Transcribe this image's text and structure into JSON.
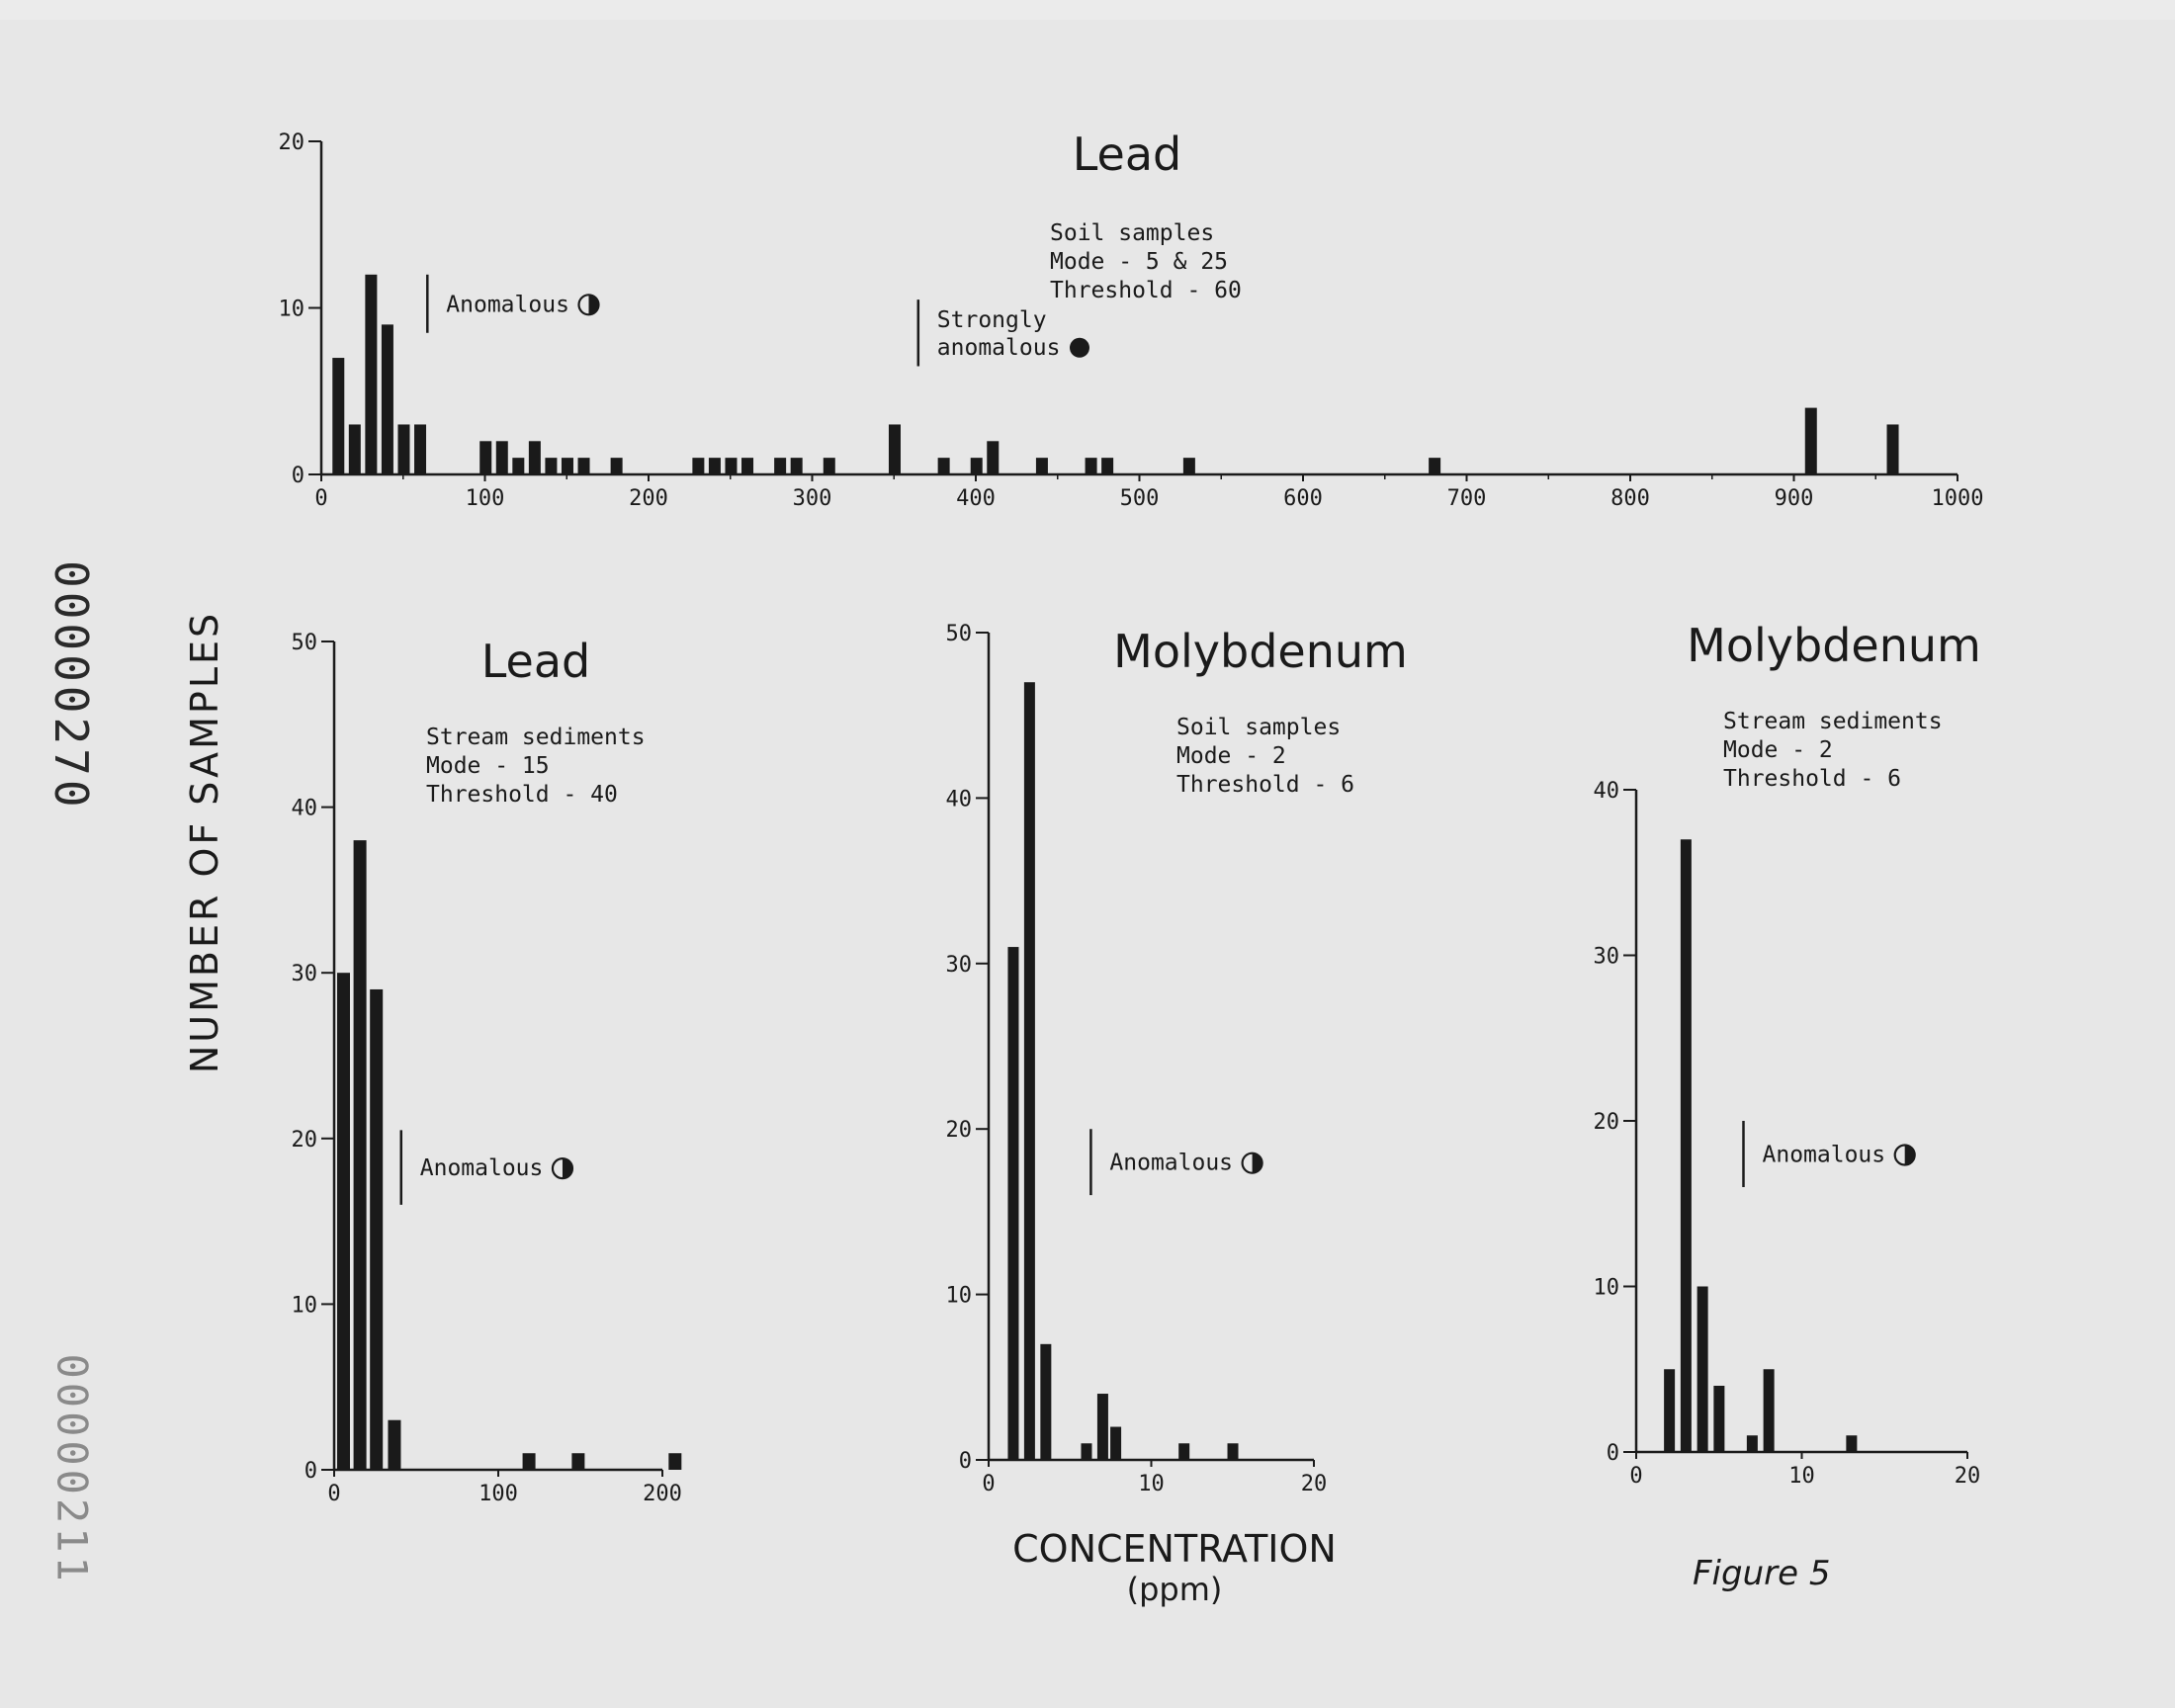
{
  "document": {
    "doc_number": "00000270",
    "doc_number_faded": "00000211",
    "figure_label": "Figure 5",
    "y_axis_label": "NUMBER   OF   SAMPLES",
    "x_axis_label": "CONCENTRATION",
    "x_axis_unit": "(ppm)"
  },
  "chart_data": [
    {
      "type": "bar",
      "title": "Lead",
      "info": [
        "Soil samples",
        "Mode - 5 & 25",
        "Threshold - 60"
      ],
      "xlim": [
        0,
        1000
      ],
      "ylim": [
        0,
        20
      ],
      "xticks": [
        0,
        100,
        200,
        300,
        400,
        500,
        600,
        700,
        800,
        900,
        1000
      ],
      "yticks": [
        0,
        10,
        20
      ],
      "bars": [
        {
          "x": 5,
          "y": 7
        },
        {
          "x": 15,
          "y": 3
        },
        {
          "x": 25,
          "y": 12
        },
        {
          "x": 35,
          "y": 9
        },
        {
          "x": 45,
          "y": 3
        },
        {
          "x": 55,
          "y": 3
        },
        {
          "x": 95,
          "y": 2
        },
        {
          "x": 105,
          "y": 2
        },
        {
          "x": 115,
          "y": 1
        },
        {
          "x": 125,
          "y": 2
        },
        {
          "x": 135,
          "y": 1
        },
        {
          "x": 145,
          "y": 1
        },
        {
          "x": 155,
          "y": 1
        },
        {
          "x": 175,
          "y": 1
        },
        {
          "x": 225,
          "y": 1
        },
        {
          "x": 235,
          "y": 1
        },
        {
          "x": 245,
          "y": 1
        },
        {
          "x": 255,
          "y": 1
        },
        {
          "x": 275,
          "y": 1
        },
        {
          "x": 285,
          "y": 1
        },
        {
          "x": 305,
          "y": 1
        },
        {
          "x": 345,
          "y": 3
        },
        {
          "x": 375,
          "y": 1
        },
        {
          "x": 395,
          "y": 1
        },
        {
          "x": 405,
          "y": 2
        },
        {
          "x": 435,
          "y": 1
        },
        {
          "x": 465,
          "y": 1
        },
        {
          "x": 475,
          "y": 1
        },
        {
          "x": 525,
          "y": 1
        },
        {
          "x": 675,
          "y": 1
        },
        {
          "x": 905,
          "y": 4
        },
        {
          "x": 955,
          "y": 3
        }
      ],
      "markers": [
        {
          "x": 60,
          "ymin": 8.5,
          "ymax": 12,
          "label": [
            "Anomalous"
          ],
          "symbol": "half"
        },
        {
          "x": 360,
          "ymin": 6.5,
          "ymax": 10.5,
          "label": [
            "Strongly",
            "anomalous"
          ],
          "symbol": "full"
        }
      ]
    },
    {
      "type": "bar",
      "title": "Lead",
      "info": [
        "Stream sediments",
        "Mode - 15",
        "Threshold - 40"
      ],
      "xlim": [
        0,
        200
      ],
      "ylim": [
        0,
        50
      ],
      "xticks": [
        0,
        100,
        200
      ],
      "yticks": [
        0,
        10,
        20,
        30,
        40,
        50
      ],
      "bars": [
        {
          "x": 0,
          "y": 30
        },
        {
          "x": 10,
          "y": 38
        },
        {
          "x": 20,
          "y": 29
        },
        {
          "x": 31,
          "y": 3
        },
        {
          "x": 113,
          "y": 1
        },
        {
          "x": 143,
          "y": 1
        },
        {
          "x": 202,
          "y": 1
        }
      ],
      "markers": [
        {
          "x": 36,
          "ymin": 16,
          "ymax": 20.5,
          "label": [
            "Anomalous"
          ],
          "symbol": "half"
        }
      ]
    },
    {
      "type": "bar",
      "title": "Molybdenum",
      "info": [
        "Soil samples",
        "Mode - 2",
        "Threshold - 6"
      ],
      "xlim": [
        0,
        20
      ],
      "ylim": [
        0,
        50
      ],
      "xticks": [
        0,
        10,
        20
      ],
      "yticks": [
        0,
        10,
        20,
        30,
        40,
        50
      ],
      "bars": [
        {
          "x": 1,
          "y": 31
        },
        {
          "x": 2,
          "y": 47
        },
        {
          "x": 3,
          "y": 7
        },
        {
          "x": 5.5,
          "y": 1
        },
        {
          "x": 6.5,
          "y": 4
        },
        {
          "x": 7.3,
          "y": 2
        },
        {
          "x": 11.5,
          "y": 1
        },
        {
          "x": 14.5,
          "y": 1
        }
      ],
      "markers": [
        {
          "x": 5.8,
          "ymin": 16,
          "ymax": 20,
          "label": [
            "Anomalous"
          ],
          "symbol": "half"
        }
      ]
    },
    {
      "type": "bar",
      "title": "Molybdenum",
      "info": [
        "Stream sediments",
        "Mode - 2",
        "Threshold - 6"
      ],
      "xlim": [
        0,
        20
      ],
      "ylim": [
        0,
        40
      ],
      "xticks": [
        0,
        10,
        20
      ],
      "yticks": [
        0,
        10,
        20,
        30,
        40
      ],
      "bars": [
        {
          "x": 1.5,
          "y": 5
        },
        {
          "x": 2.5,
          "y": 37
        },
        {
          "x": 3.5,
          "y": 10
        },
        {
          "x": 4.5,
          "y": 4
        },
        {
          "x": 6.5,
          "y": 1
        },
        {
          "x": 7.5,
          "y": 5
        },
        {
          "x": 12.5,
          "y": 1
        }
      ],
      "markers": [
        {
          "x": 6,
          "ymin": 16,
          "ymax": 20,
          "label": [
            "Anomalous"
          ],
          "symbol": "half"
        }
      ]
    }
  ]
}
